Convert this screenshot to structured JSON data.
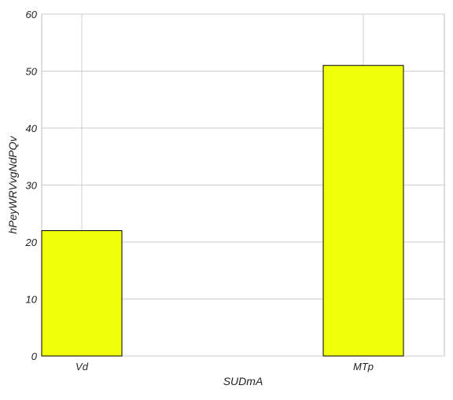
{
  "chart_data": {
    "type": "bar",
    "categories": [
      "Vd",
      "MTp"
    ],
    "values": [
      22,
      51
    ],
    "title": "",
    "xlabel": "SUDmA",
    "ylabel": "hPeyWRVvgNdPQv",
    "ylim": [
      0,
      60
    ],
    "yticks": [
      "0",
      "10",
      "20",
      "30",
      "40",
      "50",
      "60"
    ],
    "grid": true,
    "legend": "none",
    "bar_color": "#f0ff0a",
    "bar_edge_color": "#000000",
    "grid_color": "#cccccc"
  }
}
